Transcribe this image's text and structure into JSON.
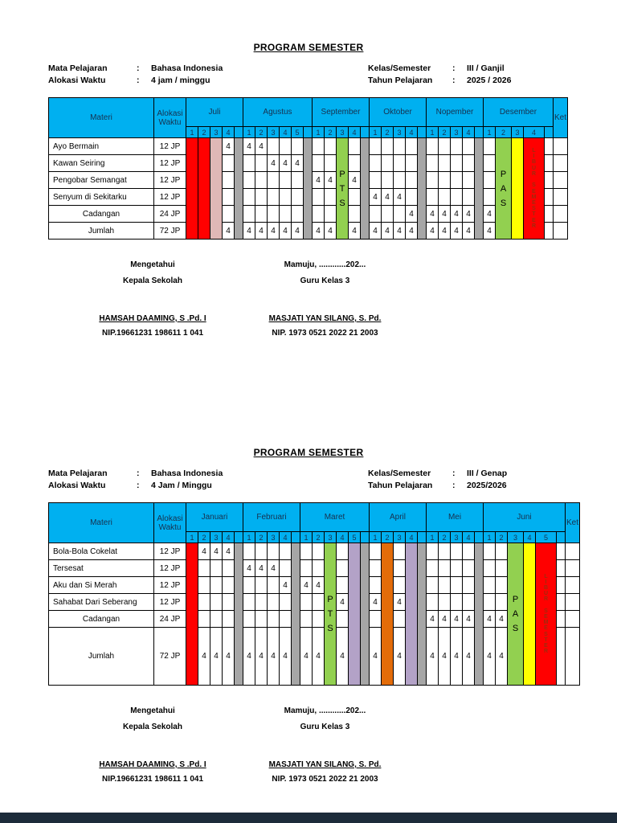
{
  "punct": {
    "colon": ":"
  },
  "colors": {
    "header_bg": "#00b0f0",
    "red": "#ff0000",
    "pink": "#dfb8b6",
    "gray": "#a6a6a6",
    "green": "#92d050",
    "yellow": "#ffff00",
    "orange": "#e36c09",
    "purple": "#b3a2c7",
    "libur_text": "#9e2b0e",
    "footer_bar": "#1c2b3a"
  },
  "semester1": {
    "title": "PROGRAM SEMESTER",
    "info": [
      {
        "l": "Mata Pelajaran",
        "lv": "Bahasa Indonesia",
        "r": "Kelas/Semester",
        "rv": "III / Ganjil"
      },
      {
        "l": "Alokasi Waktu",
        "lv": "4 jam / minggu",
        "r": "Tahun Pelajaran",
        "rv": "2025 / 2026"
      }
    ],
    "table": {
      "corner": {
        "materi": "Materi",
        "alokasi": "Alokasi Waktu",
        "ket": "Ket"
      },
      "months": [
        {
          "name": "Juli",
          "weeks": [
            "1",
            "2",
            "3",
            "4"
          ],
          "sep": true
        },
        {
          "name": "Agustus",
          "weeks": [
            "1",
            "2",
            "3",
            "4",
            "5"
          ],
          "sep": true
        },
        {
          "name": "September",
          "weeks": [
            "1",
            "2",
            "3",
            "4"
          ],
          "sep": true
        },
        {
          "name": "Oktober",
          "weeks": [
            "1",
            "2",
            "3",
            "4"
          ],
          "sep": true
        },
        {
          "name": "Nopember",
          "weeks": [
            "1",
            "2",
            "3",
            "4"
          ],
          "sep": true
        },
        {
          "name": "Desember",
          "weeks": [
            "1",
            "2",
            "3",
            "4"
          ],
          "sep": true
        }
      ],
      "strips": [
        {
          "col": "Juli-1",
          "color": "red"
        },
        {
          "col": "Juli-2",
          "color": "red"
        },
        {
          "col": "Juli-3",
          "color": "pink"
        },
        {
          "col": "Juli-sep",
          "color": "gray"
        },
        {
          "col": "Agustus-sep",
          "color": "gray"
        },
        {
          "col": "September-3",
          "color": "green",
          "label": "PTS",
          "style": "big"
        },
        {
          "col": "September-sep",
          "color": "gray"
        },
        {
          "col": "Oktober-sep",
          "color": "gray"
        },
        {
          "col": "Nopember-sep",
          "color": "gray"
        },
        {
          "col": "Desember-2",
          "color": "green",
          "label": "PAS",
          "style": "big"
        },
        {
          "col": "Desember-3",
          "color": "yellow"
        },
        {
          "col": "Desember-4",
          "color": "red",
          "label": "LIBUR SEMESTER",
          "style": "small",
          "text_color": "libur_text"
        }
      ],
      "rows": [
        {
          "materi": "Ayo Bermain",
          "alokasi": "12 JP",
          "values": {
            "Juli-4": "4",
            "Agustus-1": "4",
            "Agustus-2": "4"
          }
        },
        {
          "materi": "Kawan Seiring",
          "alokasi": "12 JP",
          "values": {
            "Agustus-3": "4",
            "Agustus-4": "4",
            "Agustus-5": "4"
          }
        },
        {
          "materi": "Pengobar Semangat",
          "alokasi": "12 JP",
          "values": {
            "September-1": "4",
            "September-2": "4",
            "September-4": "4"
          }
        },
        {
          "materi": "Senyum di Sekitarku",
          "alokasi": "12 JP",
          "values": {
            "Oktober-1": "4",
            "Oktober-2": "4",
            "Oktober-3": "4"
          }
        },
        {
          "materi": "Cadangan",
          "alokasi": "24 JP",
          "center": true,
          "values": {
            "Oktober-4": "4",
            "Nopember-1": "4",
            "Nopember-2": "4",
            "Nopember-3": "4",
            "Nopember-4": "4",
            "Desember-1": "4"
          }
        },
        {
          "materi": "Jumlah",
          "alokasi": "72 JP",
          "center": true,
          "values": {
            "Juli-4": "4",
            "Agustus-1": "4",
            "Agustus-2": "4",
            "Agustus-3": "4",
            "Agustus-4": "4",
            "Agustus-5": "4",
            "September-1": "4",
            "September-2": "4",
            "September-4": "4",
            "Oktober-1": "4",
            "Oktober-2": "4",
            "Oktober-3": "4",
            "Oktober-4": "4",
            "Nopember-1": "4",
            "Nopember-2": "4",
            "Nopember-3": "4",
            "Nopember-4": "4",
            "Desember-1": "4"
          }
        }
      ]
    },
    "sign": {
      "left1": "Mengetahui",
      "left2": "Kepala Sekolah",
      "left_name": "HAMSAH DAAMING, S .Pd. I",
      "left_nip": "NIP.19661231 198611 1 041",
      "right1": "Mamuju, ............202...",
      "right2": "Guru Kelas 3",
      "right_name": "MASJATI YAN SILANG, S. Pd.",
      "right_nip": "NIP. 1973 0521 2022 21 2003"
    }
  },
  "semester2": {
    "title": "PROGRAM SEMESTER",
    "info": [
      {
        "l": "Mata Pelajaran",
        "lv": "Bahasa Indonesia",
        "r": "Kelas/Semester",
        "rv": "III / Genap"
      },
      {
        "l": "Alokasi Waktu",
        "lv": "4 Jam / Minggu",
        "r": "Tahun Pelajaran",
        "rv": "2025/2026"
      }
    ],
    "table": {
      "corner": {
        "materi": "Materi",
        "alokasi": "Alokasi Waktu",
        "ket": "Ket"
      },
      "months": [
        {
          "name": "Januari",
          "weeks": [
            "1",
            "2",
            "3",
            "4"
          ],
          "sep": true
        },
        {
          "name": "Februari",
          "weeks": [
            "1",
            "2",
            "3",
            "4"
          ],
          "sep": true
        },
        {
          "name": "Maret",
          "weeks": [
            "1",
            "2",
            "3",
            "4",
            "5"
          ],
          "sep": true
        },
        {
          "name": "April",
          "weeks": [
            "1",
            "2",
            "3",
            "4"
          ],
          "sep": true
        },
        {
          "name": "Mei",
          "weeks": [
            "1",
            "2",
            "3",
            "4"
          ],
          "sep": true
        },
        {
          "name": "Juni",
          "weeks": [
            "1",
            "2",
            "3",
            "4",
            "5"
          ],
          "sep": true
        }
      ],
      "strips": [
        {
          "col": "Januari-1",
          "color": "red"
        },
        {
          "col": "Januari-sep",
          "color": "gray"
        },
        {
          "col": "Februari-sep",
          "color": "gray"
        },
        {
          "col": "Maret-3",
          "color": "green",
          "label": "PTS",
          "style": "big"
        },
        {
          "col": "Maret-5",
          "color": "purple"
        },
        {
          "col": "Maret-sep",
          "color": "gray"
        },
        {
          "col": "April-2",
          "color": "orange"
        },
        {
          "col": "April-4",
          "color": "purple"
        },
        {
          "col": "April-sep",
          "color": "gray"
        },
        {
          "col": "Mei-sep",
          "color": "gray"
        },
        {
          "col": "Juni-3",
          "color": "green",
          "label": "PAS",
          "style": "big"
        },
        {
          "col": "Juni-4",
          "color": "yellow"
        },
        {
          "col": "Juni-5",
          "color": "red",
          "label": "LIBUR SEMESTER",
          "style": "small",
          "text_color": "libur_text"
        }
      ],
      "rows": [
        {
          "materi": "Bola-Bola Cokelat",
          "alokasi": "12 JP",
          "values": {
            "Januari-2": "4",
            "Januari-3": "4",
            "Januari-4": "4"
          }
        },
        {
          "materi": "Tersesat",
          "alokasi": "12 JP",
          "values": {
            "Februari-1": "4",
            "Februari-2": "4",
            "Februari-3": "4"
          }
        },
        {
          "materi": "Aku dan Si Merah",
          "alokasi": "12 JP",
          "values": {
            "Februari-4": "4",
            "Maret-1": "4",
            "Maret-2": "4"
          }
        },
        {
          "materi": "Sahabat Dari Seberang",
          "alokasi": "12 JP",
          "values": {
            "Maret-4": "4",
            "April-1": "4",
            "April-3": "4"
          }
        },
        {
          "materi": "Cadangan",
          "alokasi": "24  JP",
          "center": true,
          "values": {
            "Mei-1": "4",
            "Mei-2": "4",
            "Mei-3": "4",
            "Mei-4": "4",
            "Juni-1": "4",
            "Juni-2": "4"
          }
        },
        {
          "materi": "Jumlah",
          "alokasi": "72 JP",
          "center": true,
          "tall": true,
          "values": {
            "Januari-2": "4",
            "Januari-3": "4",
            "Januari-4": "4",
            "Februari-1": "4",
            "Februari-2": "4",
            "Februari-3": "4",
            "Februari-4": "4",
            "Maret-1": "4",
            "Maret-2": "4",
            "Maret-4": "4",
            "April-1": "4",
            "April-3": "4",
            "Mei-1": "4",
            "Mei-2": "4",
            "Mei-3": "4",
            "Mei-4": "4",
            "Juni-1": "4",
            "Juni-2": "4"
          }
        }
      ]
    },
    "sign": {
      "left1": "Mengetahui",
      "left2": "Kepala Sekolah",
      "left_name": "HAMSAH DAAMING, S .Pd. I",
      "left_nip": "NIP.19661231 198611 1 041",
      "right1": "Mamuju, ............202...",
      "right2": "Guru Kelas 3",
      "right_name": "MASJATI YAN SILANG, S. Pd.",
      "right_nip": "NIP. 1973 0521 2022 21 2003"
    }
  }
}
